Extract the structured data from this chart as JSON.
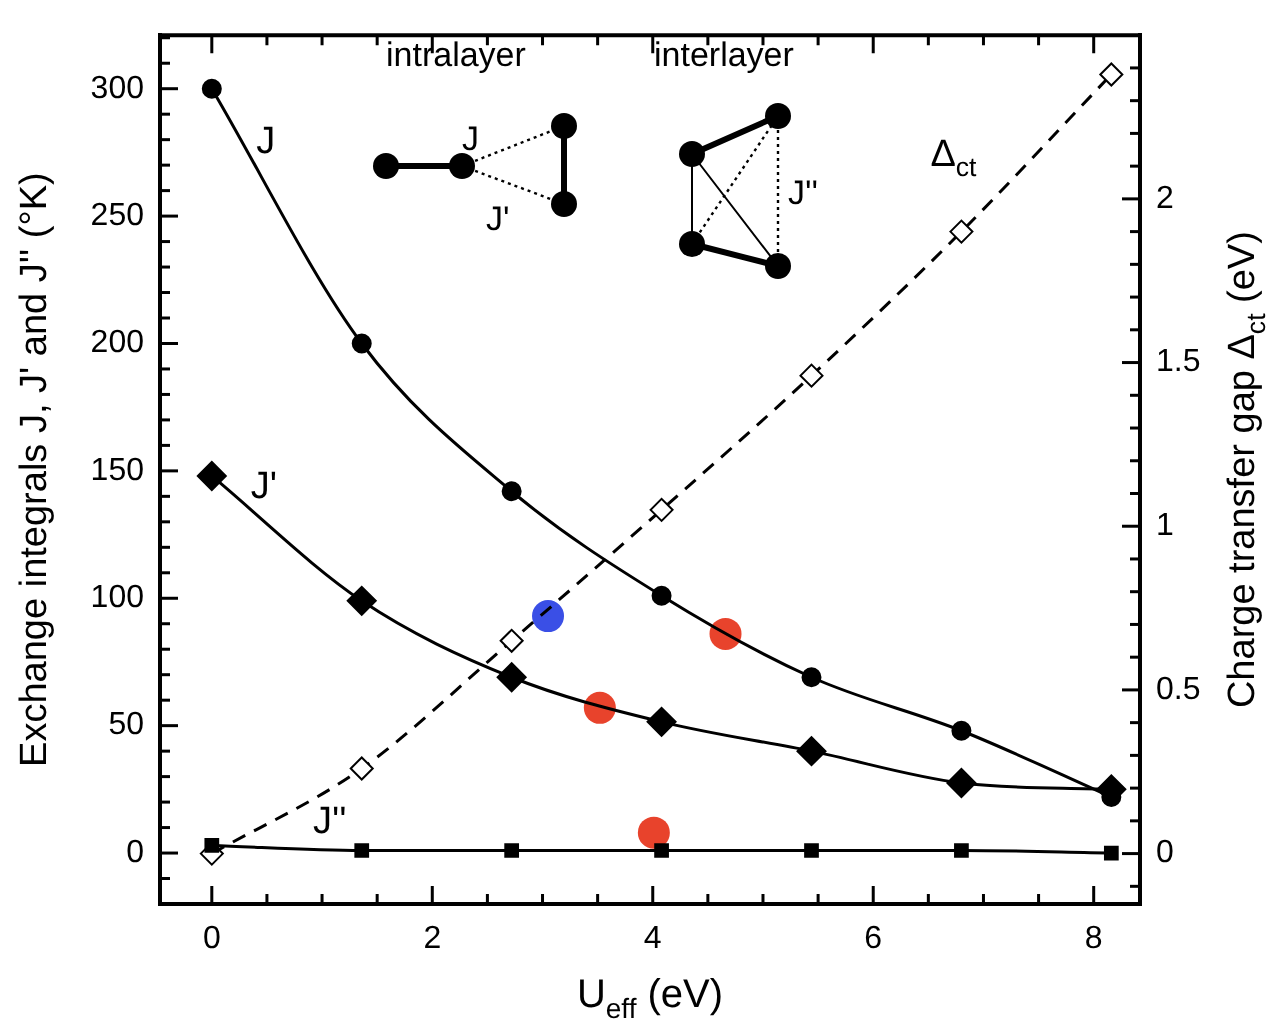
{
  "chart_data": {
    "type": "line",
    "xlabel": "U$_{eff}$ (eV)",
    "ylabel": "Exchange integrals J, J' and J'' (°K)",
    "y2label": "Charge transfer gap Δ$_{ct}$ (eV)",
    "annotations": [
      "intralayer",
      "J",
      "J'",
      "interlayer",
      "J''"
    ],
    "x": [
      0,
      1.36,
      2.72,
      4.08,
      5.44,
      6.8,
      8.16
    ],
    "xlim": [
      -0.47,
      8.42
    ],
    "xticks": [
      0,
      {
        "value": 0.5,
        "label": null
      },
      {
        "value": 1,
        "label": null
      },
      {
        "value": 1.5,
        "label": null
      },
      2,
      {
        "value": 2.5,
        "label": null
      },
      {
        "value": 3,
        "label": null
      },
      {
        "value": 3.5,
        "label": null
      },
      4,
      {
        "value": 4.5,
        "label": null
      },
      {
        "value": 5,
        "label": null
      },
      {
        "value": 5.5,
        "label": null
      },
      6,
      {
        "value": 6.5,
        "label": null
      },
      {
        "value": 7,
        "label": null
      },
      {
        "value": 7.5,
        "label": null
      },
      8
    ],
    "ylim": [
      -20,
      321
    ],
    "yticks": [
      {
        "value": -10,
        "label": null
      },
      0,
      {
        "value": 10,
        "label": null
      },
      {
        "value": 20,
        "label": null
      },
      {
        "value": 30,
        "label": null
      },
      {
        "value": 40,
        "label": null
      },
      50,
      {
        "value": 60,
        "label": null
      },
      {
        "value": 70,
        "label": null
      },
      {
        "value": 80,
        "label": null
      },
      {
        "value": 90,
        "label": null
      },
      100,
      {
        "value": 110,
        "label": null
      },
      {
        "value": 120,
        "label": null
      },
      {
        "value": 130,
        "label": null
      },
      {
        "value": 140,
        "label": null
      },
      150,
      {
        "value": 160,
        "label": null
      },
      {
        "value": 170,
        "label": null
      },
      {
        "value": 180,
        "label": null
      },
      {
        "value": 190,
        "label": null
      },
      200,
      {
        "value": 210,
        "label": null
      },
      {
        "value": 220,
        "label": null
      },
      {
        "value": 230,
        "label": null
      },
      {
        "value": 240,
        "label": null
      },
      250,
      {
        "value": 260,
        "label": null
      },
      {
        "value": 270,
        "label": null
      },
      {
        "value": 280,
        "label": null
      },
      {
        "value": 290,
        "label": null
      },
      300,
      {
        "value": 310,
        "label": null
      },
      {
        "value": 320,
        "label": null
      }
    ],
    "y2lim": [
      -0.154,
      2.5
    ],
    "y2ticks": [
      {
        "value": -0.1,
        "label": null
      },
      0,
      {
        "value": 0.1,
        "label": null
      },
      {
        "value": 0.2,
        "label": null
      },
      {
        "value": 0.3,
        "label": null
      },
      {
        "value": 0.4,
        "label": null
      },
      0.5,
      {
        "value": 0.6,
        "label": null
      },
      {
        "value": 0.7,
        "label": null
      },
      {
        "value": 0.8,
        "label": null
      },
      {
        "value": 0.9,
        "label": null
      },
      1,
      {
        "value": 1.1,
        "label": null
      },
      {
        "value": 1.2,
        "label": null
      },
      {
        "value": 1.3,
        "label": null
      },
      {
        "value": 1.4,
        "label": null
      },
      1.5,
      {
        "value": 1.6,
        "label": null
      },
      {
        "value": 1.7,
        "label": null
      },
      {
        "value": 1.8,
        "label": null
      },
      {
        "value": 1.9,
        "label": null
      },
      2,
      {
        "value": 2.1,
        "label": null
      },
      {
        "value": 2.2,
        "label": null
      },
      {
        "value": 2.3,
        "label": null
      },
      {
        "value": 2.4,
        "label": null
      }
    ],
    "grid": false,
    "legend": false,
    "series": [
      {
        "name": "J",
        "color": "#000000",
        "marker": "circle",
        "line_style": "solid",
        "values": [
          300,
          200,
          142,
          101,
          69,
          48,
          22
        ]
      },
      {
        "name": "J'",
        "color": "#000000",
        "marker": "diamond",
        "line_style": "solid",
        "values": [
          148,
          99,
          69,
          51.5,
          40,
          27.5,
          25
        ]
      },
      {
        "name": "J''",
        "color": "#000000",
        "marker": "square",
        "line_style": "solid",
        "values": [
          3,
          1,
          1,
          1,
          1,
          1,
          0
        ]
      },
      {
        "name": "Δ$_{ct}$",
        "color": "#000000",
        "marker": "diamond",
        "line_style": "dashed",
        "axis": "y2",
        "values": [
          0,
          0.26,
          0.65,
          1.05,
          1.46,
          1.9,
          2.38
        ]
      },
      {
        "type": "scatter",
        "color": "#3a4fe6",
        "marker": "circle",
        "x": [
          3.05
        ],
        "values": [
          93
        ]
      },
      {
        "type": "scatter",
        "color": "#e8432c",
        "marker": "circle",
        "x": [
          4.66,
          3.52,
          4.01
        ],
        "values": [
          86,
          57,
          8
        ]
      }
    ]
  }
}
